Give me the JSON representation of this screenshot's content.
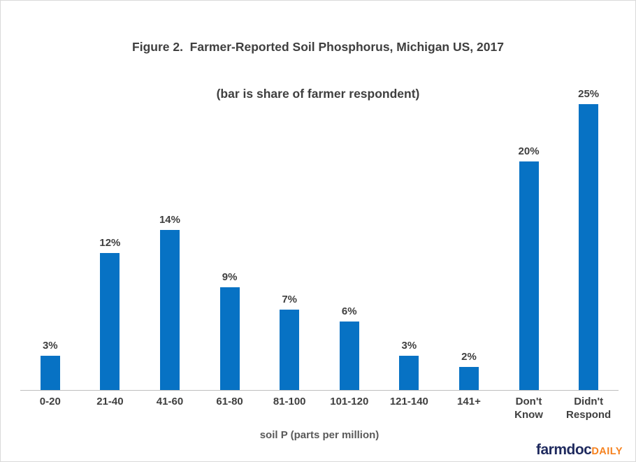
{
  "chart_data": {
    "type": "bar",
    "title_line1": "Figure 2.  Farmer-Reported Soil Phosphorus, Michigan US, 2017",
    "title_line2": "(bar is share of farmer respondent)",
    "categories": [
      "0-20",
      "21-40",
      "41-60",
      "61-80",
      "81-100",
      "101-120",
      "121-140",
      "141+",
      "Don't\nKnow",
      "Didn't\nRespond"
    ],
    "values": [
      3,
      12,
      14,
      9,
      7,
      6,
      3,
      2,
      20,
      25
    ],
    "data_labels": [
      "3%",
      "12%",
      "14%",
      "9%",
      "7%",
      "6%",
      "3%",
      "2%",
      "20%",
      "25%"
    ],
    "xlabel": "soil P (parts per million)",
    "ylabel": "",
    "ylim": [
      0,
      25
    ],
    "grid": false,
    "legend": false,
    "bar_color": "#0772C4"
  },
  "branding": {
    "logo_main": "farmdoc",
    "logo_accent": "DAILY"
  },
  "colors": {
    "bar": "#0772C4",
    "title_text": "#3F3F3F",
    "tick_text": "#3F3F3F",
    "axis_title_text": "#595959",
    "axis_line": "#BFBFBF",
    "canvas_border": "#D9D9D9",
    "logo_navy": "#1F2A5E",
    "logo_orange": "#F6821F"
  }
}
